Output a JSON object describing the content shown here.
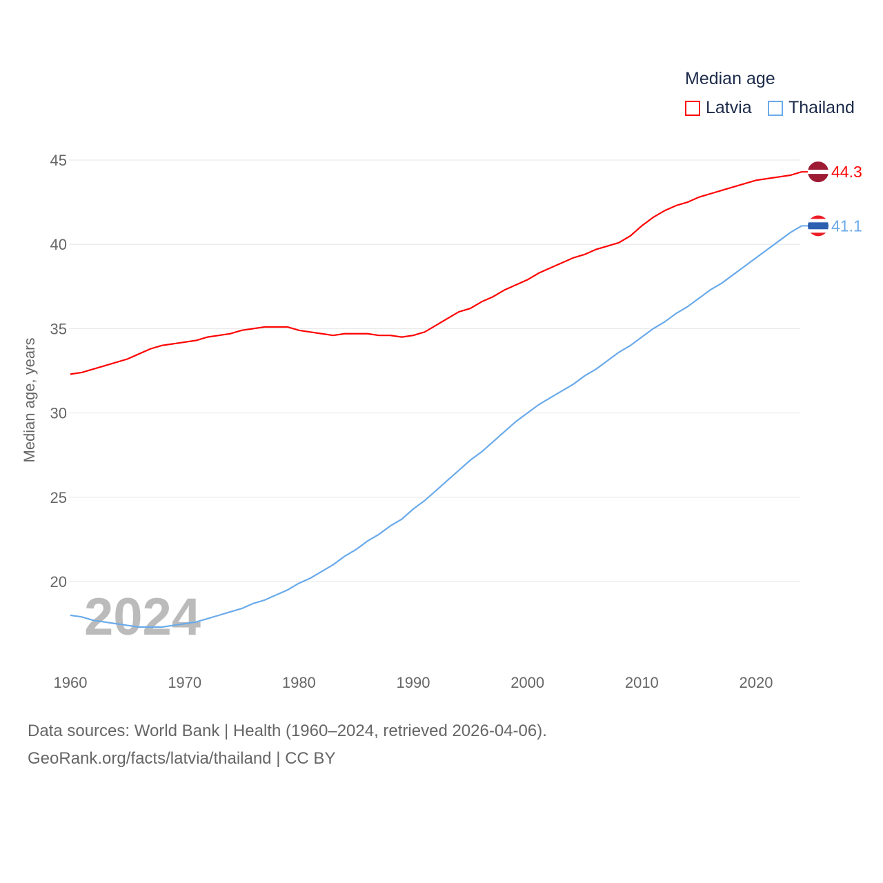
{
  "chart_data": {
    "type": "line",
    "title": "",
    "ylabel": "Median age, years",
    "xlabel": "",
    "xlim": [
      1960,
      2024
    ],
    "yticks": [
      20,
      25,
      30,
      35,
      40,
      45
    ],
    "xticks": [
      1960,
      1970,
      1980,
      1990,
      2000,
      2010,
      2020
    ],
    "legend_title": "Median age",
    "legend_placement": "top-right",
    "year_watermark": "2024",
    "x": [
      1960,
      1961,
      1962,
      1963,
      1964,
      1965,
      1966,
      1967,
      1968,
      1969,
      1970,
      1971,
      1972,
      1973,
      1974,
      1975,
      1976,
      1977,
      1978,
      1979,
      1980,
      1981,
      1982,
      1983,
      1984,
      1985,
      1986,
      1987,
      1988,
      1989,
      1990,
      1991,
      1992,
      1993,
      1994,
      1995,
      1996,
      1997,
      1998,
      1999,
      2000,
      2001,
      2002,
      2003,
      2004,
      2005,
      2006,
      2007,
      2008,
      2009,
      2010,
      2011,
      2012,
      2013,
      2014,
      2015,
      2016,
      2017,
      2018,
      2019,
      2020,
      2021,
      2022,
      2023,
      2024
    ],
    "series": [
      {
        "name": "Latvia",
        "color": "#ff0000",
        "end_label": "44.3",
        "values": [
          32.3,
          32.4,
          32.6,
          32.8,
          33.0,
          33.2,
          33.5,
          33.8,
          34.0,
          34.1,
          34.2,
          34.3,
          34.5,
          34.6,
          34.7,
          34.9,
          35.0,
          35.1,
          35.1,
          35.1,
          34.9,
          34.8,
          34.7,
          34.6,
          34.7,
          34.7,
          34.7,
          34.6,
          34.6,
          34.5,
          34.6,
          34.8,
          35.2,
          35.6,
          36.0,
          36.2,
          36.6,
          36.9,
          37.3,
          37.6,
          37.9,
          38.3,
          38.6,
          38.9,
          39.2,
          39.4,
          39.7,
          39.9,
          40.1,
          40.5,
          41.1,
          41.6,
          42.0,
          42.3,
          42.5,
          42.8,
          43.0,
          43.2,
          43.4,
          43.6,
          43.8,
          43.9,
          44.0,
          44.1,
          44.3
        ]
      },
      {
        "name": "Thailand",
        "color": "#6aaaea",
        "end_label": "41.1",
        "values": [
          18.0,
          17.9,
          17.7,
          17.6,
          17.5,
          17.4,
          17.3,
          17.3,
          17.3,
          17.4,
          17.5,
          17.6,
          17.8,
          18.0,
          18.2,
          18.4,
          18.7,
          18.9,
          19.2,
          19.5,
          19.9,
          20.2,
          20.6,
          21.0,
          21.5,
          21.9,
          22.4,
          22.8,
          23.3,
          23.7,
          24.3,
          24.8,
          25.4,
          26.0,
          26.6,
          27.2,
          27.7,
          28.3,
          28.9,
          29.5,
          30.0,
          30.5,
          30.9,
          31.3,
          31.7,
          32.2,
          32.6,
          33.1,
          33.6,
          34.0,
          34.5,
          35.0,
          35.4,
          35.9,
          36.3,
          36.8,
          37.3,
          37.7,
          38.2,
          38.7,
          39.2,
          39.7,
          40.2,
          40.7,
          41.1
        ]
      }
    ]
  },
  "footer": {
    "line1": "Data sources: World Bank | Health (1960–2024, retrieved 2026-04-06).",
    "line2": "GeoRank.org/facts/latvia/thailand | CC BY"
  }
}
